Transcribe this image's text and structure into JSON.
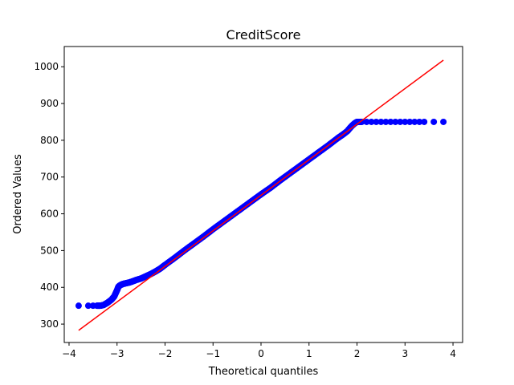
{
  "chart_data": {
    "type": "scatter",
    "title": "CreditScore",
    "xlabel": "Theoretical quantiles",
    "ylabel": "Ordered Values",
    "xlim": [
      -4.1,
      4.2
    ],
    "ylim": [
      250,
      1055
    ],
    "xticks": [
      -4,
      -3,
      -2,
      -1,
      0,
      1,
      2,
      3,
      4
    ],
    "yticks": [
      300,
      400,
      500,
      600,
      700,
      800,
      900,
      1000
    ],
    "grid": false,
    "marker_color": "#0000ff",
    "fit_line_color": "#ff0000",
    "fit_line": {
      "x": [
        -3.8,
        3.8
      ],
      "y": [
        283,
        1018
      ]
    },
    "points": {
      "x": [
        -3.8,
        -3.6,
        -3.5,
        -3.42,
        -3.35,
        -3.28,
        -3.2,
        -3.12,
        -3.06,
        -3.0,
        -2.97,
        -2.93,
        -2.88,
        -2.82,
        -2.75,
        -2.68,
        -2.6,
        -2.5,
        -2.4,
        -2.3,
        -2.2,
        -2.1,
        -2.0,
        -1.8,
        -1.6,
        -1.4,
        -1.2,
        -1.0,
        -0.8,
        -0.6,
        -0.4,
        -0.2,
        0.0,
        0.2,
        0.4,
        0.6,
        0.8,
        1.0,
        1.2,
        1.4,
        1.6,
        1.7,
        1.8,
        1.85,
        1.9,
        1.95,
        2.0,
        2.1,
        2.2,
        2.3,
        2.4,
        2.5,
        2.6,
        2.7,
        2.8,
        2.9,
        3.0,
        3.1,
        3.2,
        3.3,
        3.4,
        3.6,
        3.8
      ],
      "y": [
        350,
        350,
        350,
        350,
        350,
        352,
        358,
        366,
        375,
        392,
        402,
        406,
        409,
        411,
        413,
        416,
        420,
        424,
        430,
        436,
        443,
        451,
        461,
        480,
        500,
        519,
        538,
        558,
        577,
        596,
        615,
        634,
        653,
        671,
        691,
        710,
        729,
        748,
        767,
        786,
        806,
        815,
        825,
        833,
        840,
        846,
        850,
        850,
        850,
        850,
        850,
        850,
        850,
        850,
        850,
        850,
        850,
        850,
        850,
        850,
        850,
        850,
        850
      ]
    }
  }
}
